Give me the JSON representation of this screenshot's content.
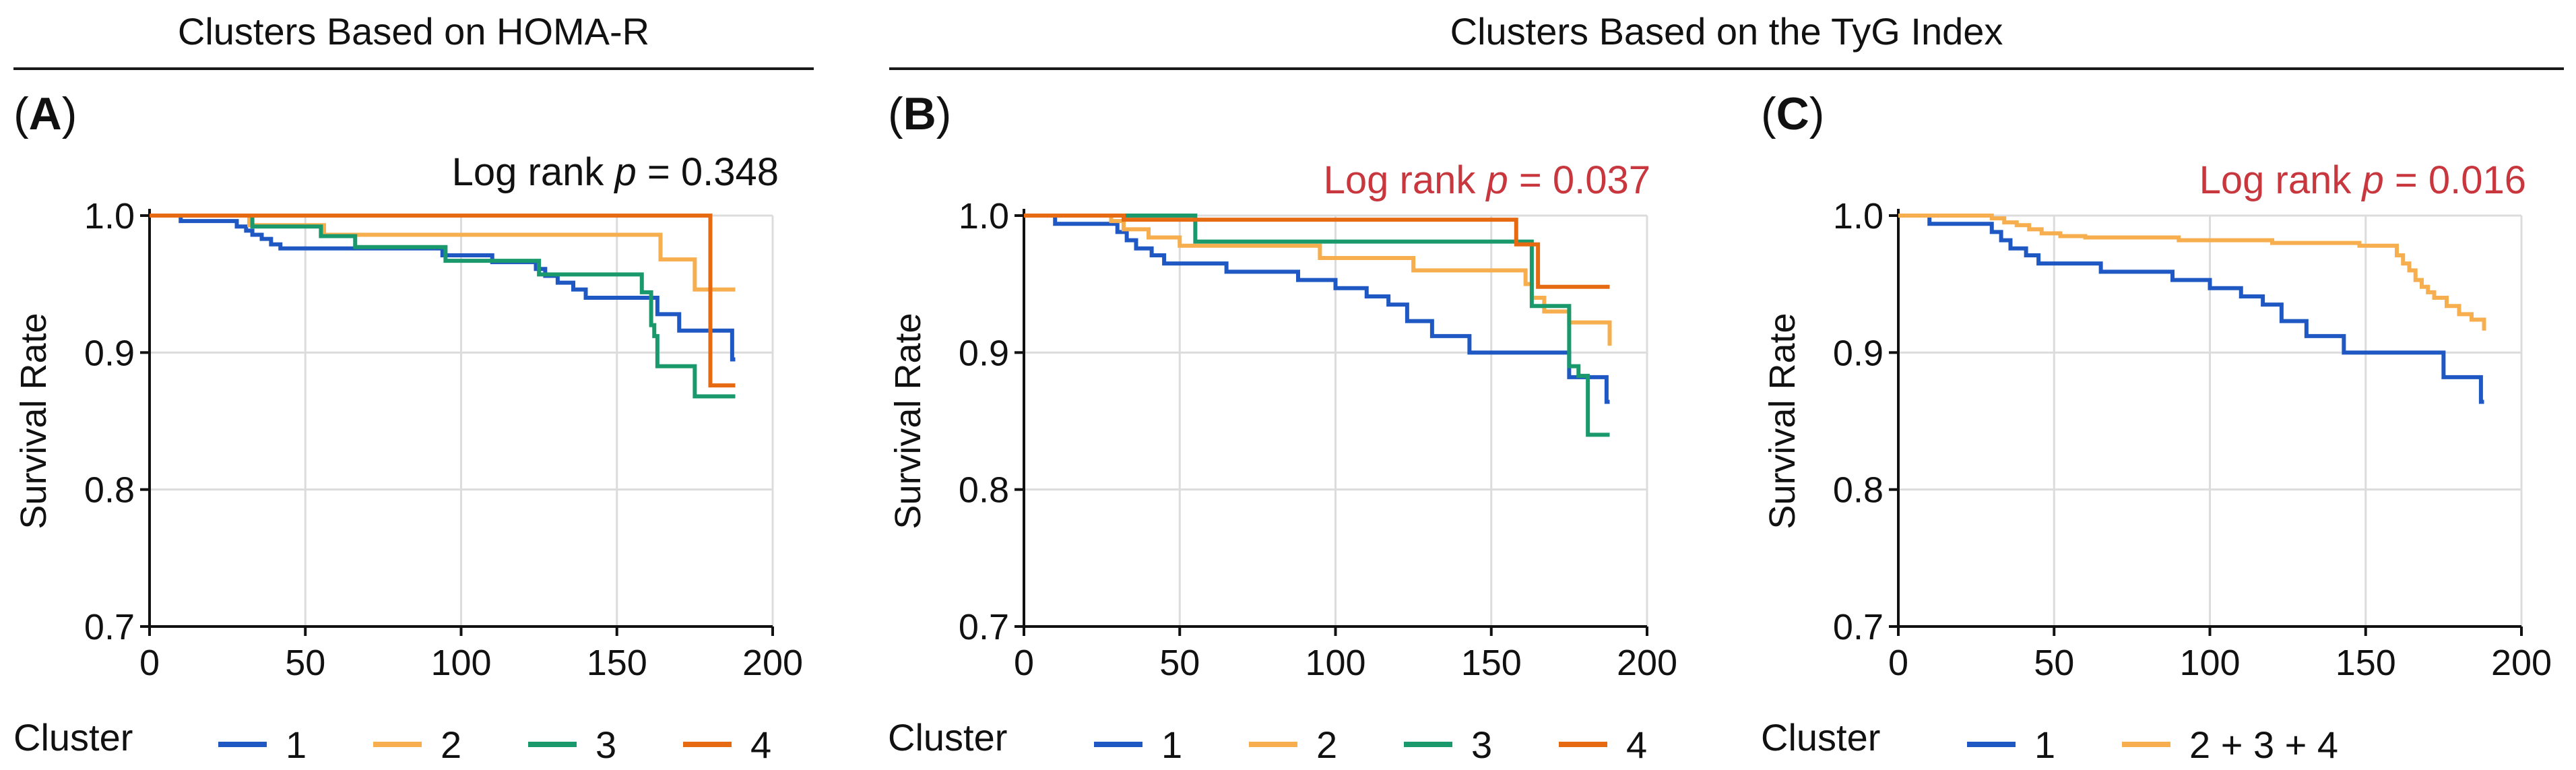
{
  "headers": {
    "left": "Clusters Based on HOMA-R",
    "right": "Clusters Based on the TyG Index"
  },
  "colors": {
    "cluster_1": "#1f57c3",
    "cluster_2": "#f6ae4e",
    "cluster_3": "#1a9a6c",
    "cluster_4": "#e66a12",
    "p_black": "#111111",
    "p_red": "#c8373e",
    "grid": "#dcdcdc"
  },
  "panels": [
    {
      "id": "A",
      "letter": "A",
      "p_prefix": "Log rank ",
      "p_symbol": "p",
      "p_value": " = 0.348",
      "p_color": "#111111",
      "legend_title": "Cluster",
      "legend": [
        {
          "label": "1",
          "color": "#1f57c3"
        },
        {
          "label": "2",
          "color": "#f6ae4e"
        },
        {
          "label": "3",
          "color": "#1a9a6c"
        },
        {
          "label": "4",
          "color": "#e66a12"
        }
      ]
    },
    {
      "id": "B",
      "letter": "B",
      "p_prefix": "Log rank ",
      "p_symbol": "p",
      "p_value": " = 0.037",
      "p_color": "#c8373e",
      "legend_title": "Cluster",
      "legend": [
        {
          "label": "1",
          "color": "#1f57c3"
        },
        {
          "label": "2",
          "color": "#f6ae4e"
        },
        {
          "label": "3",
          "color": "#1a9a6c"
        },
        {
          "label": "4",
          "color": "#e66a12"
        }
      ]
    },
    {
      "id": "C",
      "letter": "C",
      "p_prefix": "Log rank ",
      "p_symbol": "p",
      "p_value": " = 0.016",
      "p_color": "#c8373e",
      "legend_title": "Cluster",
      "legend": [
        {
          "label": "1",
          "color": "#1f57c3"
        },
        {
          "label": "2 + 3 + 4",
          "color": "#f6ae4e"
        }
      ]
    }
  ],
  "chart_data": [
    {
      "type": "line",
      "step": true,
      "title": "(A)",
      "xlabel": "",
      "ylabel": "Survival Rate",
      "xlim": [
        0,
        200
      ],
      "ylim": [
        0.7,
        1.0
      ],
      "xticks": [
        0,
        50,
        100,
        150,
        200
      ],
      "yticks": [
        0.7,
        0.8,
        0.9,
        1.0
      ],
      "ytick_labels": [
        "0.7",
        "0.8",
        "0.9",
        "1.0"
      ],
      "series": [
        {
          "name": "1",
          "color": "#1f57c3",
          "x": [
            0,
            10,
            28,
            31,
            33,
            36,
            39,
            42,
            56,
            94,
            110,
            124,
            127,
            131,
            136,
            140,
            147,
            163,
            170,
            177,
            187,
            188
          ],
          "y": [
            1.0,
            0.996,
            0.992,
            0.989,
            0.986,
            0.983,
            0.979,
            0.976,
            0.976,
            0.971,
            0.966,
            0.961,
            0.956,
            0.951,
            0.946,
            0.94,
            0.94,
            0.928,
            0.916,
            0.916,
            0.895,
            0.895
          ]
        },
        {
          "name": "2",
          "color": "#f6ae4e",
          "x": [
            0,
            32,
            56,
            164,
            175,
            188
          ],
          "y": [
            1.0,
            0.993,
            0.986,
            0.968,
            0.946,
            0.946
          ]
        },
        {
          "name": "3",
          "color": "#1a9a6c",
          "x": [
            0,
            33,
            55,
            66,
            95,
            125,
            158,
            161,
            162,
            163,
            175,
            188
          ],
          "y": [
            1.0,
            0.992,
            0.985,
            0.977,
            0.967,
            0.957,
            0.944,
            0.92,
            0.912,
            0.89,
            0.868,
            0.868
          ]
        },
        {
          "name": "4",
          "color": "#e66a12",
          "x": [
            0,
            180,
            182,
            188
          ],
          "y": [
            1.0,
            0.876,
            0.876,
            0.876
          ]
        }
      ],
      "annotation": "Log rank p = 0.348"
    },
    {
      "type": "line",
      "step": true,
      "title": "(B)",
      "xlabel": "",
      "ylabel": "Survival Rate",
      "xlim": [
        0,
        200
      ],
      "ylim": [
        0.7,
        1.0
      ],
      "xticks": [
        0,
        50,
        100,
        150,
        200
      ],
      "yticks": [
        0.7,
        0.8,
        0.9,
        1.0
      ],
      "ytick_labels": [
        "0.7",
        "0.8",
        "0.9",
        "1.0"
      ],
      "series": [
        {
          "name": "1",
          "color": "#1f57c3",
          "x": [
            0,
            10,
            30,
            33,
            36,
            41,
            45,
            65,
            88,
            100,
            110,
            117,
            123,
            131,
            143,
            175,
            187,
            188
          ],
          "y": [
            1.0,
            0.994,
            0.988,
            0.982,
            0.976,
            0.971,
            0.965,
            0.959,
            0.953,
            0.947,
            0.941,
            0.935,
            0.923,
            0.912,
            0.9,
            0.882,
            0.864,
            0.864
          ]
        },
        {
          "name": "2",
          "color": "#f6ae4e",
          "x": [
            0,
            28,
            32,
            40,
            50,
            95,
            125,
            161,
            163,
            167,
            175,
            188
          ],
          "y": [
            1.0,
            0.996,
            0.99,
            0.984,
            0.978,
            0.969,
            0.96,
            0.95,
            0.94,
            0.93,
            0.922,
            0.905
          ]
        },
        {
          "name": "3",
          "color": "#1a9a6c",
          "x": [
            0,
            55,
            157,
            163,
            175,
            178,
            181,
            188
          ],
          "y": [
            1.0,
            0.981,
            0.981,
            0.934,
            0.89,
            0.883,
            0.84,
            0.84
          ]
        },
        {
          "name": "4",
          "color": "#e66a12",
          "x": [
            0,
            32,
            158,
            165,
            188
          ],
          "y": [
            1.0,
            0.997,
            0.979,
            0.948,
            0.948
          ]
        }
      ],
      "annotation": "Log rank p = 0.037"
    },
    {
      "type": "line",
      "step": true,
      "title": "(C)",
      "xlabel": "",
      "ylabel": "Survival Rate",
      "xlim": [
        0,
        200
      ],
      "ylim": [
        0.7,
        1.0
      ],
      "xticks": [
        0,
        50,
        100,
        150,
        200
      ],
      "yticks": [
        0.7,
        0.8,
        0.9,
        1.0
      ],
      "ytick_labels": [
        "0.7",
        "0.8",
        "0.9",
        "1.0"
      ],
      "series": [
        {
          "name": "1",
          "color": "#1f57c3",
          "x": [
            0,
            10,
            30,
            33,
            36,
            41,
            45,
            65,
            88,
            100,
            110,
            117,
            123,
            131,
            143,
            175,
            187,
            188
          ],
          "y": [
            1.0,
            0.994,
            0.988,
            0.982,
            0.976,
            0.971,
            0.965,
            0.959,
            0.953,
            0.947,
            0.941,
            0.935,
            0.923,
            0.912,
            0.9,
            0.882,
            0.864,
            0.864
          ]
        },
        {
          "name": "2 + 3 + 4",
          "color": "#f6ae4e",
          "x": [
            0,
            30,
            34,
            38,
            42,
            46,
            52,
            60,
            90,
            120,
            148,
            160,
            162,
            164,
            166,
            168,
            170,
            172,
            176,
            180,
            184,
            188
          ],
          "y": [
            1.0,
            0.998,
            0.995,
            0.993,
            0.99,
            0.987,
            0.985,
            0.984,
            0.982,
            0.98,
            0.978,
            0.971,
            0.965,
            0.96,
            0.953,
            0.948,
            0.944,
            0.94,
            0.934,
            0.928,
            0.924,
            0.916
          ]
        }
      ],
      "annotation": "Log rank p = 0.016"
    }
  ]
}
